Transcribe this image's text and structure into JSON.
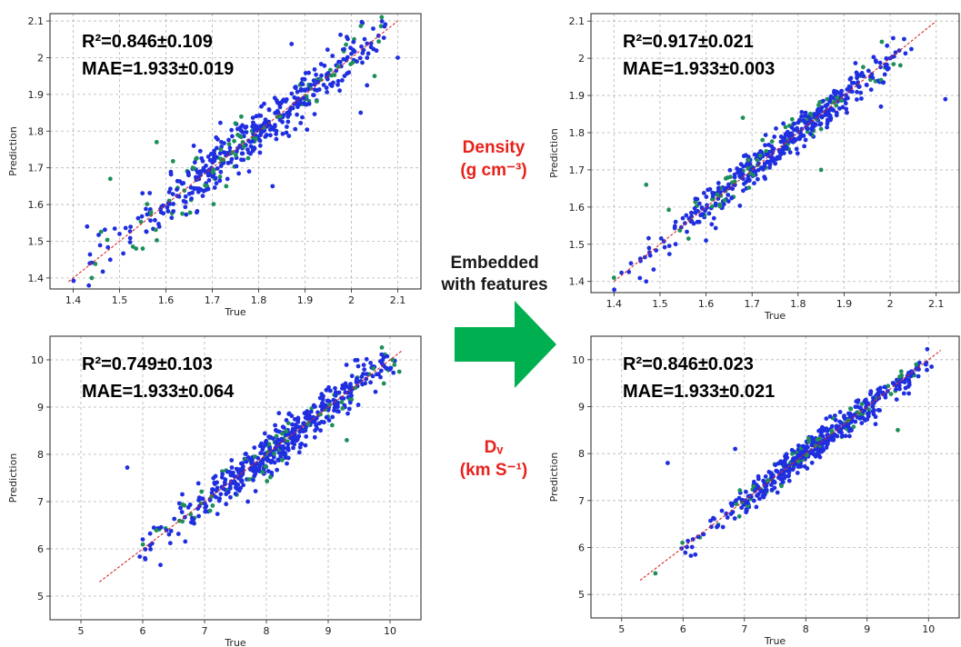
{
  "colors": {
    "primary_points": "#1f2fe0",
    "secondary_points": "#1e8f5a",
    "fit_line": "#d62728",
    "arrow": "#00b050",
    "property_label": "#e8211b"
  },
  "labels": {
    "density_line1": "Density",
    "density_line2": "(g cm⁻³)",
    "dv_line1": "Dᵥ",
    "dv_line2": "(km S⁻¹)",
    "embedded_line1": "Embedded",
    "embedded_line2": "with features"
  },
  "chart_data": [
    {
      "id": "density-baseline",
      "type": "scatter",
      "xlabel": "True",
      "ylabel": "Prediction",
      "xlim": [
        1.35,
        2.15
      ],
      "ylim": [
        1.37,
        2.12
      ],
      "xticks": [
        1.4,
        1.5,
        1.6,
        1.7,
        1.8,
        1.9,
        2.0,
        2.1
      ],
      "yticks": [
        1.4,
        1.5,
        1.6,
        1.7,
        1.8,
        1.9,
        2.0,
        2.1
      ],
      "grid": true,
      "reference_line": [
        [
          1.39,
          1.39
        ],
        [
          2.1,
          2.1
        ]
      ],
      "metric_r2": "R²=0.846±0.109",
      "metric_mae": "MAE=1.933±0.019",
      "cloud": {
        "x_range": [
          1.39,
          2.1
        ],
        "center_y_offset": 0.0,
        "spread": 0.035,
        "count": 480
      },
      "highlight_points": [
        [
          2.1,
          2.0
        ],
        [
          1.48,
          1.67
        ],
        [
          1.43,
          1.54
        ],
        [
          1.44,
          1.4
        ],
        [
          2.02,
          1.85
        ],
        [
          2.05,
          1.95
        ],
        [
          1.83,
          1.65
        ],
        [
          1.58,
          1.77
        ],
        [
          1.66,
          1.76
        ],
        [
          1.73,
          1.65
        ],
        [
          1.5,
          1.52
        ],
        [
          1.55,
          1.48
        ]
      ],
      "extent": [
        1.39,
        2.1
      ]
    },
    {
      "id": "density-embedded",
      "type": "scatter",
      "xlabel": "True",
      "ylabel": "Prediction",
      "xlim": [
        1.35,
        2.15
      ],
      "ylim": [
        1.37,
        2.12
      ],
      "xticks": [
        1.4,
        1.5,
        1.6,
        1.7,
        1.8,
        1.9,
        2.0,
        2.1
      ],
      "yticks": [
        1.4,
        1.5,
        1.6,
        1.7,
        1.8,
        1.9,
        2.0,
        2.1
      ],
      "grid": true,
      "reference_line": [
        [
          1.4,
          1.4
        ],
        [
          2.1,
          2.1
        ]
      ],
      "metric_r2": "R²=0.917±0.021",
      "metric_mae": "MAE=1.933±0.003",
      "cloud": {
        "x_range": [
          1.4,
          2.05
        ],
        "center_y_offset": 0.0,
        "spread": 0.025,
        "count": 480
      },
      "highlight_points": [
        [
          2.12,
          1.89
        ],
        [
          1.47,
          1.66
        ],
        [
          1.47,
          1.4
        ],
        [
          1.4,
          1.41
        ],
        [
          1.98,
          1.87
        ],
        [
          1.68,
          1.84
        ],
        [
          1.6,
          1.51
        ],
        [
          1.85,
          1.7
        ],
        [
          2.0,
          2.0
        ]
      ],
      "extent": [
        1.4,
        2.1
      ]
    },
    {
      "id": "dv-baseline",
      "type": "scatter",
      "xlabel": "True",
      "ylabel": "Prediction",
      "xlim": [
        4.5,
        10.5
      ],
      "ylim": [
        4.5,
        10.5
      ],
      "xticks": [
        5,
        6,
        7,
        8,
        9,
        10
      ],
      "yticks": [
        5,
        6,
        7,
        8,
        9,
        10
      ],
      "grid": true,
      "reference_line": [
        [
          5.3,
          5.3
        ],
        [
          10.2,
          10.2
        ]
      ],
      "metric_r2": "R²=0.749±0.103",
      "metric_mae": "MAE=1.933±0.064",
      "cloud": {
        "x_range": [
          5.9,
          10.1
        ],
        "center_y_offset": 0.1,
        "spread": 0.22,
        "count": 520
      },
      "highlight_points": [
        [
          5.75,
          7.72
        ],
        [
          10.15,
          9.75
        ],
        [
          10.0,
          9.8
        ],
        [
          9.9,
          9.5
        ],
        [
          6.0,
          6.2
        ],
        [
          9.3,
          8.3
        ],
        [
          7.7,
          7.0
        ]
      ],
      "extent": [
        5.3,
        10.2
      ]
    },
    {
      "id": "dv-embedded",
      "type": "scatter",
      "xlabel": "True",
      "ylabel": "Prediction",
      "xlim": [
        4.5,
        10.5
      ],
      "ylim": [
        4.5,
        10.5
      ],
      "xticks": [
        5,
        6,
        7,
        8,
        9,
        10
      ],
      "yticks": [
        5,
        6,
        7,
        8,
        9,
        10
      ],
      "grid": true,
      "reference_line": [
        [
          5.3,
          5.3
        ],
        [
          10.2,
          10.2
        ]
      ],
      "metric_r2": "R²=0.846±0.023",
      "metric_mae": "MAE=1.933±0.021",
      "cloud": {
        "x_range": [
          5.9,
          10.0
        ],
        "center_y_offset": 0.05,
        "spread": 0.16,
        "count": 520
      },
      "highlight_points": [
        [
          5.75,
          7.8
        ],
        [
          5.55,
          5.45
        ],
        [
          10.05,
          9.85
        ],
        [
          9.8,
          9.9
        ],
        [
          6.85,
          8.1
        ],
        [
          9.5,
          8.5
        ],
        [
          6.2,
          5.85
        ]
      ],
      "extent": [
        5.3,
        10.2
      ]
    }
  ]
}
